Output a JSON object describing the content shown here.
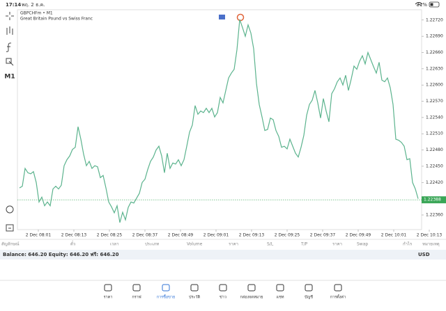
{
  "status": {
    "time": "17:14",
    "date": "พฤ. 2 ธ.ค.",
    "battery": "31%"
  },
  "toolbar": {
    "timeframe": "M1"
  },
  "chart_data": {
    "type": "line",
    "title": "GBPCHFm • M1",
    "subtitle": "Great Britain Pound vs Swiss Franc",
    "color": "#5bb38d",
    "values": [
      1.2241,
      1.22413,
      1.22446,
      1.22438,
      1.22436,
      1.2244,
      1.2242,
      1.22384,
      1.22393,
      1.22377,
      1.22384,
      1.22377,
      1.22408,
      1.22413,
      1.22408,
      1.22415,
      1.22451,
      1.22462,
      1.22469,
      1.22481,
      1.22485,
      1.22523,
      1.225,
      1.22472,
      1.22451,
      1.22459,
      1.22446,
      1.22451,
      1.22449,
      1.22429,
      1.22433,
      1.2241,
      1.22384,
      1.22375,
      1.22364,
      1.22377,
      1.22346,
      1.22365,
      1.22351,
      1.22374,
      1.22384,
      1.22382,
      1.22391,
      1.224,
      1.2242,
      1.22426,
      1.22444,
      1.22459,
      1.22467,
      1.2248,
      1.22487,
      1.22469,
      1.22438,
      1.22474,
      1.22446,
      1.22456,
      1.22454,
      1.22462,
      1.22451,
      1.22462,
      1.22487,
      1.22513,
      1.22526,
      1.22562,
      1.22546,
      1.22552,
      1.22549,
      1.22557,
      1.22549,
      1.22557,
      1.22541,
      1.22549,
      1.22577,
      1.22567,
      1.2259,
      1.22613,
      1.22622,
      1.22629,
      1.22665,
      1.22721,
      1.22706,
      1.2269,
      1.22711,
      1.22696,
      1.22667,
      1.22603,
      1.22564,
      1.22541,
      1.22516,
      1.22518,
      1.22539,
      1.22536,
      1.22516,
      1.22505,
      1.22485,
      1.22487,
      1.22482,
      1.225,
      1.22487,
      1.22474,
      1.22467,
      1.22485,
      1.22507,
      1.22544,
      1.22564,
      1.22572,
      1.2259,
      1.22567,
      1.22539,
      1.22575,
      1.22552,
      1.22532,
      1.22584,
      1.22593,
      1.22606,
      1.22613,
      1.226,
      1.22618,
      1.2259,
      1.22611,
      1.22635,
      1.22629,
      1.22644,
      1.22654,
      1.22639,
      1.2266,
      1.22647,
      1.22634,
      1.22622,
      1.22642,
      1.22609,
      1.22606,
      1.22613,
      1.22595,
      1.22564,
      1.225,
      1.22498,
      1.22494,
      1.22487,
      1.22462,
      1.22464,
      1.2242,
      1.22408,
      1.2239
    ],
    "xlim": [
      -0.75,
      144.25
    ],
    "xticks": [
      {
        "value": 6.75,
        "label": "2 Dec 08:01"
      },
      {
        "value": 19.5,
        "label": "2 Dec 08:13"
      },
      {
        "value": 32.25,
        "label": "2 Dec 08:25"
      },
      {
        "value": 45,
        "label": "2 Dec 08:37"
      },
      {
        "value": 57.75,
        "label": "2 Dec 08:49"
      },
      {
        "value": 70.5,
        "label": "2 Dec 09:01"
      },
      {
        "value": 83.25,
        "label": "2 Dec 09:13"
      },
      {
        "value": 96,
        "label": "2 Dec 09:25"
      },
      {
        "value": 108.75,
        "label": "2 Dec 09:37"
      },
      {
        "value": 121.5,
        "label": "2 Dec 09:49"
      },
      {
        "value": 134.25,
        "label": "2 Dec 10:01"
      },
      {
        "value": 147,
        "label": "2 Dec 10:13"
      }
    ],
    "ylim": [
      1.22333,
      1.22739
    ],
    "yticks": [
      {
        "value": 1.2272,
        "label": "1.22720"
      },
      {
        "value": 1.2269,
        "label": "1.22690"
      },
      {
        "value": 1.2266,
        "label": "1.22660"
      },
      {
        "value": 1.2263,
        "label": "1.22630"
      },
      {
        "value": 1.226,
        "label": "1.22600"
      },
      {
        "value": 1.2257,
        "label": "1.22570"
      },
      {
        "value": 1.2254,
        "label": "1.22540"
      },
      {
        "value": 1.2251,
        "label": "1.22510"
      },
      {
        "value": 1.2248,
        "label": "1.22480"
      },
      {
        "value": 1.2245,
        "label": "1.22450"
      },
      {
        "value": 1.2242,
        "label": "1.22420"
      },
      {
        "value": 1.2236,
        "label": "1.22360"
      }
    ],
    "current_price": 1.22388,
    "price_color": "#3aa657"
  },
  "positions_table": {
    "columns": [
      "สัญลักษณ์",
      "ตั๋ว",
      "เวลา",
      "ประเภท",
      "Volume",
      "ราคา",
      "S/L",
      "T/P",
      "ราคา",
      "Swap",
      "กำไร",
      "หมายเหตุ"
    ]
  },
  "account": {
    "summary": "Balance: 646.20 Equity: 646.20 ฟรี: 646.20",
    "currency": "USD"
  },
  "nav": {
    "items": [
      "ราคา",
      "กราฟ",
      "การซื้อขาย",
      "ประวัติ",
      "ข่าว",
      "กล่องจดหมาย",
      "แชท",
      "บัญชี",
      "การตั้งค่า"
    ],
    "active": 2
  }
}
